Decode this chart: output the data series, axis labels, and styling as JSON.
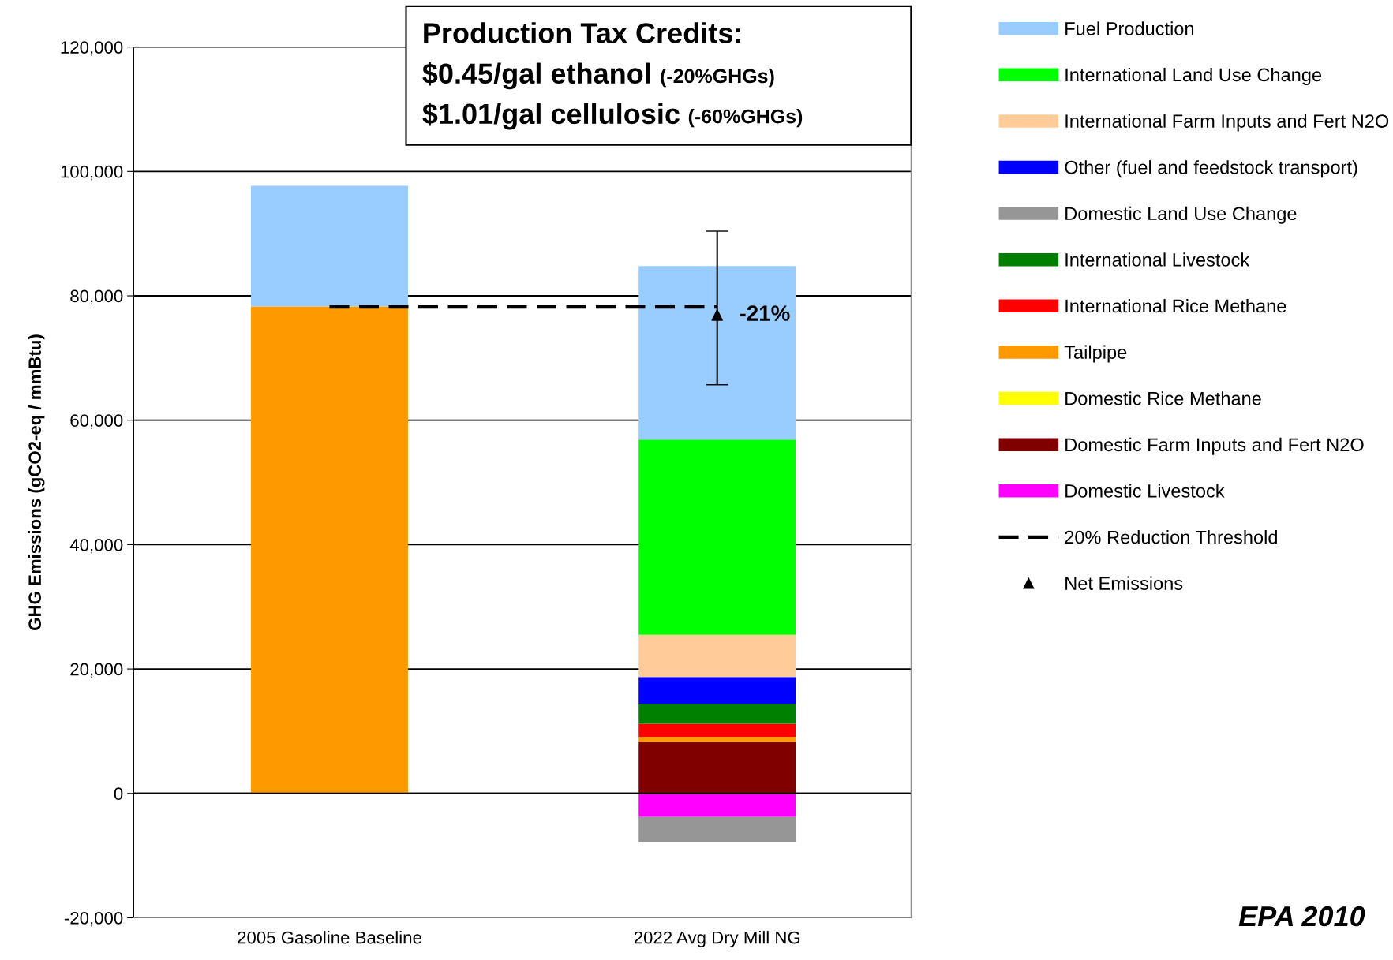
{
  "chart_data": {
    "type": "bar",
    "stacked": true,
    "title": "Production Tax Credits:",
    "ylabel": "GHG Emissions (gCO2-eq / mmBtu)",
    "categories": [
      "2005 Gasoline Baseline",
      "2022 Avg Dry Mill NG"
    ],
    "series": [
      {
        "name": "Domestic Livestock",
        "color": "#ff00ff",
        "values": [
          null,
          -3800
        ]
      },
      {
        "name": "Domestic Farm Inputs and Fert N2O",
        "color": "#800000",
        "values": [
          null,
          8200
        ]
      },
      {
        "name": "Domestic Rice Methane",
        "color": "#ffff00",
        "values": [
          null,
          0
        ]
      },
      {
        "name": "Tailpipe",
        "color": "#ff9900",
        "values": [
          78300,
          900
        ]
      },
      {
        "name": "International Rice Methane",
        "color": "#ff0000",
        "values": [
          null,
          2100
        ]
      },
      {
        "name": "International Livestock",
        "color": "#008000",
        "values": [
          null,
          3200
        ]
      },
      {
        "name": "Domestic Land Use Change",
        "color": "#969696",
        "values": [
          null,
          -4100
        ]
      },
      {
        "name": "Other (fuel and feedstock transport)",
        "color": "#0000ff",
        "values": [
          null,
          4300
        ]
      },
      {
        "name": "International Farm Inputs and Fert N2O",
        "color": "#ffcc99",
        "values": [
          null,
          6800
        ]
      },
      {
        "name": "International Land Use Change",
        "color": "#00ff00",
        "values": [
          null,
          31400
        ]
      },
      {
        "name": "Fuel Production",
        "color": "#99ccff",
        "values": [
          19400,
          27900
        ]
      },
      {
        "name": "20% Reduction Threshold",
        "type": "line",
        "color": "#000000",
        "line_style": "dashed",
        "marker": "none",
        "values": [
          78200,
          78200
        ]
      },
      {
        "name": "Net Emissions",
        "type": "scatter",
        "color": "#000000",
        "marker": "triangle",
        "values": [
          null,
          76900
        ],
        "errors": [
          null,
          [
            65700,
            90400
          ]
        ]
      }
    ],
    "annotations": [
      "$0.45/gal ethanol",
      "(-20%GHGs)",
      "$1.01/gal cellulosic",
      "(-60%GHGs)",
      "EPA 2010",
      {
        "text": "-21%",
        "x": "2022 Avg Dry Mill NG",
        "y": 76900
      }
    ],
    "ylim": [
      -20000,
      120000
    ],
    "yticks": [
      {
        "value": -20000,
        "label": "-20,000"
      },
      0,
      {
        "value": 20000,
        "label": "20,000"
      },
      {
        "value": 40000,
        "label": "40,000"
      },
      {
        "value": 60000,
        "label": "60,000"
      },
      {
        "value": 80000,
        "label": "80,000"
      },
      {
        "value": 100000,
        "label": "100,000"
      },
      {
        "value": 120000,
        "label": "120,000"
      }
    ],
    "grid": "y",
    "legend": "right"
  }
}
